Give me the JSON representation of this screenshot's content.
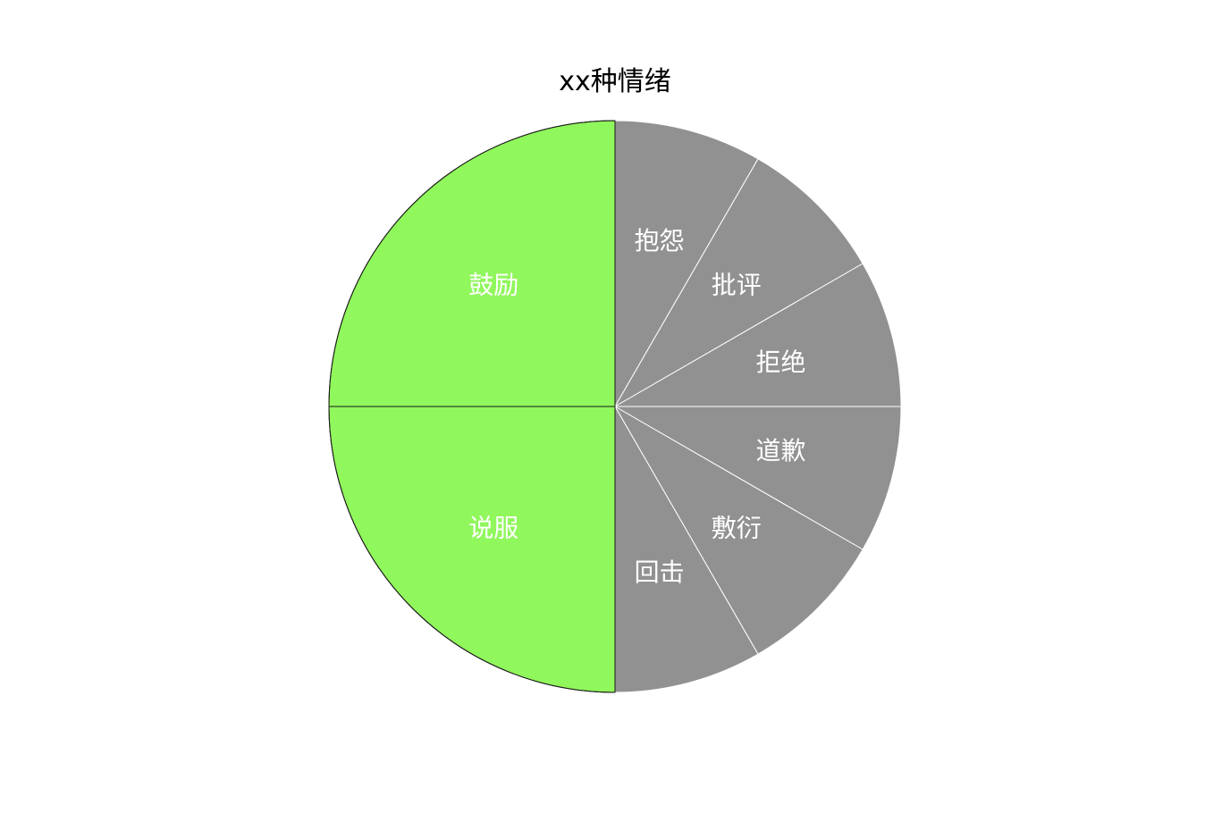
{
  "chart_data": {
    "type": "pie",
    "title": "xx种情绪",
    "start": "12 o'clock",
    "direction": "clockwise",
    "slices": [
      {
        "label": "抱怨",
        "value": 1,
        "color": "#919191"
      },
      {
        "label": "批评",
        "value": 1,
        "color": "#919191"
      },
      {
        "label": "拒绝",
        "value": 1,
        "color": "#919191"
      },
      {
        "label": "道歉",
        "value": 1,
        "color": "#919191"
      },
      {
        "label": "敷衍",
        "value": 1,
        "color": "#919191"
      },
      {
        "label": "回击",
        "value": 1,
        "color": "#919191"
      },
      {
        "label": "说服",
        "value": 3,
        "color": "#90f75c"
      },
      {
        "label": "鼓励",
        "value": 3,
        "color": "#90f75c"
      }
    ]
  }
}
